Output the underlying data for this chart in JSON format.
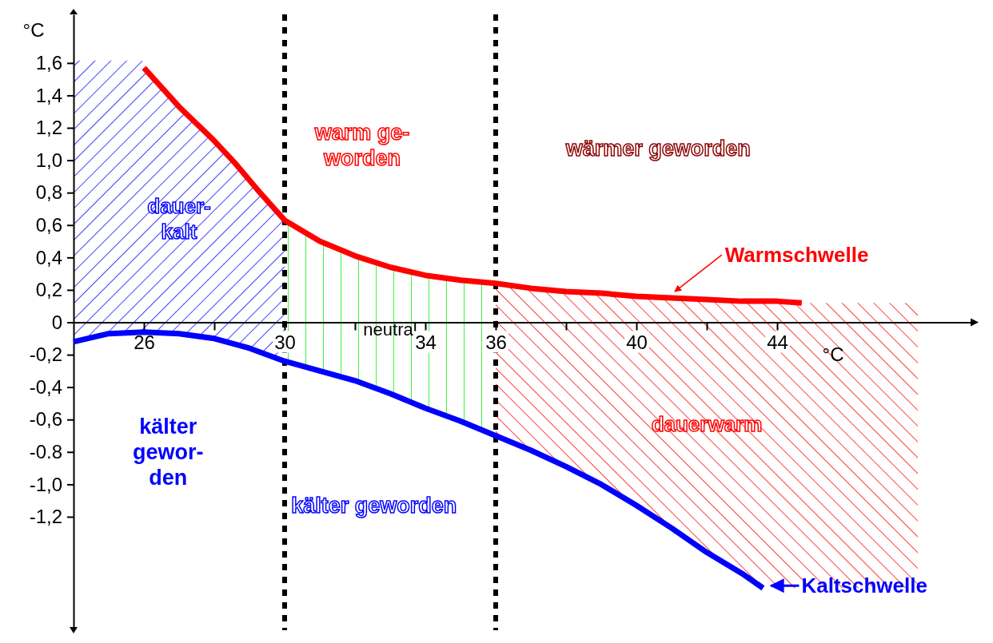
{
  "chart_data": {
    "type": "line",
    "ylabel": "°C",
    "xlabel": "°C",
    "xlim": [
      24,
      49.5
    ],
    "ylim": [
      -1.9,
      1.9
    ],
    "xticks": [
      {
        "value": 26,
        "label": "26"
      },
      {
        "value": 28,
        "label": null
      },
      {
        "value": 30,
        "label": "30"
      },
      {
        "value": 32,
        "label": null
      },
      {
        "value": 34,
        "label": "34"
      },
      {
        "value": 36,
        "label": "36"
      },
      {
        "value": 38,
        "label": null
      },
      {
        "value": 40,
        "label": "40"
      },
      {
        "value": 42,
        "label": null
      },
      {
        "value": 44,
        "label": "44"
      }
    ],
    "yticks": [
      {
        "value": -1.2,
        "label": "-1,2"
      },
      {
        "value": -1.0,
        "label": "-1,0"
      },
      {
        "value": -0.8,
        "label": "-0.8"
      },
      {
        "value": -0.6,
        "label": "-0,6"
      },
      {
        "value": -0.4,
        "label": "-0,4"
      },
      {
        "value": -0.2,
        "label": "-0,2"
      },
      0,
      {
        "value": 0.2,
        "label": "0,2"
      },
      {
        "value": 0.4,
        "label": "0,4"
      },
      {
        "value": 0.6,
        "label": "0,6"
      },
      {
        "value": 0.8,
        "label": "0,8"
      },
      {
        "value": 1.0,
        "label": "1,0"
      },
      {
        "value": 1.2,
        "label": "1,2"
      },
      {
        "value": 1.4,
        "label": "1,4"
      },
      {
        "value": 1.6,
        "label": "1,6"
      }
    ],
    "series": [
      {
        "name": "Warmschwelle",
        "color": "#ff0000",
        "x": [
          26,
          27,
          28,
          28.6,
          29.3,
          30,
          31,
          32,
          33,
          34,
          35,
          36,
          37,
          38,
          39,
          40,
          41,
          42,
          43,
          44,
          44.7
        ],
        "values": [
          1.57,
          1.33,
          1.12,
          0.98,
          0.8,
          0.63,
          0.5,
          0.41,
          0.34,
          0.29,
          0.26,
          0.24,
          0.21,
          0.19,
          0.18,
          0.16,
          0.15,
          0.14,
          0.13,
          0.13,
          0.12
        ]
      },
      {
        "name": "Kaltschwelle",
        "color": "#0000ff",
        "x": [
          24,
          25,
          26,
          27,
          28,
          29,
          30,
          31,
          32,
          33,
          34,
          35,
          36,
          37,
          38,
          39,
          40,
          41,
          42,
          43,
          43.6
        ],
        "values": [
          -0.12,
          -0.07,
          -0.06,
          -0.07,
          -0.1,
          -0.16,
          -0.24,
          -0.3,
          -0.36,
          -0.44,
          -0.53,
          -0.61,
          -0.7,
          -0.79,
          -0.89,
          -1.0,
          -1.13,
          -1.27,
          -1.42,
          -1.55,
          -1.64
        ]
      }
    ],
    "bands": [
      {
        "axis": "x",
        "from": 24,
        "to": 30,
        "label": "dauer-\nkalt",
        "color": "#0000ff"
      },
      {
        "axis": "x",
        "from": 30,
        "to": 36,
        "label": "neutral",
        "color": "#00ee00"
      },
      {
        "axis": "x",
        "from": 36,
        "to": 48,
        "label": "dauerwarm",
        "color": "#ff0000"
      }
    ],
    "ref_lines": [
      {
        "axis": "x",
        "value": 30,
        "color": "#000000",
        "line_style": "dotted"
      },
      {
        "axis": "x",
        "value": 36,
        "color": "#000000",
        "line_style": "dotted"
      }
    ],
    "annotations": [
      "warm ge-\nworden",
      "wärmer geworden",
      "kälter\ngewor-\nden",
      "kälter geworden"
    ],
    "grid": false,
    "line_style": "solid"
  }
}
